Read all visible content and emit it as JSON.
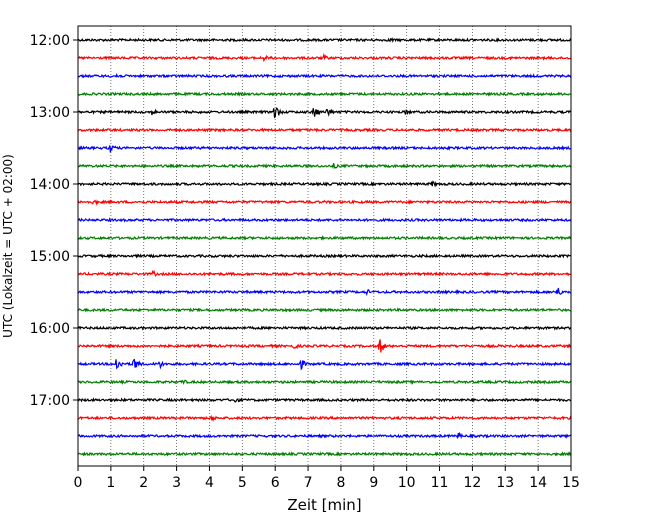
{
  "chart_data": {
    "type": "line",
    "xlabel": "Zeit  [min]",
    "ylabel": "UTC (Lokalzeit = UTC + 02:00)",
    "xlim": [
      0,
      15
    ],
    "x_ticks": [
      "0",
      "1",
      "2",
      "3",
      "4",
      "5",
      "6",
      "7",
      "8",
      "9",
      "10",
      "11",
      "12",
      "13",
      "14",
      "15"
    ],
    "y_tick_labels": [
      "12:00",
      "13:00",
      "14:00",
      "15:00",
      "16:00",
      "17:00"
    ],
    "grid": "vertical dotted",
    "trace_interval_min": 15,
    "trace_colors": [
      "#000000",
      "#ff0000",
      "#0000ff",
      "#008000"
    ],
    "traces": [
      {
        "start": "12:00",
        "events": [
          [
            9.5,
            3
          ]
        ]
      },
      {
        "start": "12:15",
        "events": [
          [
            5.7,
            3
          ],
          [
            7.5,
            3
          ]
        ]
      },
      {
        "start": "12:30",
        "events": [
          [
            1.2,
            3
          ]
        ]
      },
      {
        "start": "12:45",
        "events": []
      },
      {
        "start": "13:00",
        "events": [
          [
            6.0,
            8
          ],
          [
            7.2,
            6
          ],
          [
            7.6,
            5
          ],
          [
            2.3,
            3
          ],
          [
            10.0,
            3
          ]
        ]
      },
      {
        "start": "13:15",
        "events": []
      },
      {
        "start": "13:30",
        "events": [
          [
            1.0,
            5
          ]
        ]
      },
      {
        "start": "13:45",
        "events": [
          [
            7.8,
            3
          ]
        ]
      },
      {
        "start": "14:00",
        "events": [
          [
            10.8,
            3
          ]
        ]
      },
      {
        "start": "14:15",
        "events": [
          [
            0.5,
            3
          ]
        ]
      },
      {
        "start": "14:30",
        "events": []
      },
      {
        "start": "14:45",
        "events": []
      },
      {
        "start": "15:00",
        "events": []
      },
      {
        "start": "15:15",
        "events": [
          [
            2.3,
            3
          ]
        ]
      },
      {
        "start": "15:30",
        "events": [
          [
            8.8,
            3
          ],
          [
            14.6,
            5
          ]
        ]
      },
      {
        "start": "15:45",
        "events": []
      },
      {
        "start": "16:00",
        "events": []
      },
      {
        "start": "16:15",
        "events": [
          [
            6.6,
            3
          ],
          [
            9.2,
            8
          ]
        ]
      },
      {
        "start": "16:30",
        "events": [
          [
            1.2,
            7
          ],
          [
            1.7,
            8
          ],
          [
            2.5,
            4
          ],
          [
            6.8,
            5
          ]
        ]
      },
      {
        "start": "16:45",
        "events": [
          [
            3.2,
            3
          ]
        ]
      },
      {
        "start": "17:00",
        "events": [
          [
            4.8,
            3
          ]
        ]
      },
      {
        "start": "17:15",
        "events": [
          [
            4.1,
            3
          ]
        ]
      },
      {
        "start": "17:30",
        "events": [
          [
            11.6,
            3
          ]
        ]
      },
      {
        "start": "17:45",
        "events": []
      }
    ]
  }
}
